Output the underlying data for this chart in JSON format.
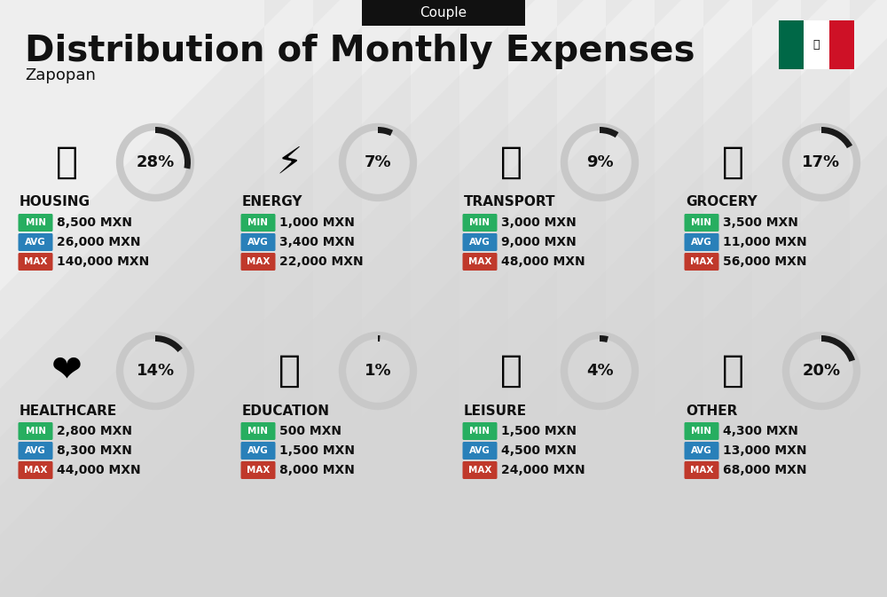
{
  "title": "Distribution of Monthly Expenses",
  "subtitle": "Couple",
  "location": "Zapopan",
  "bg_color": "#eeeeee",
  "categories": [
    {
      "name": "HOUSING",
      "pct": 28,
      "min": "8,500 MXN",
      "avg": "26,000 MXN",
      "max": "140,000 MXN",
      "row": 0,
      "col": 0
    },
    {
      "name": "ENERGY",
      "pct": 7,
      "min": "1,000 MXN",
      "avg": "3,400 MXN",
      "max": "22,000 MXN",
      "row": 0,
      "col": 1
    },
    {
      "name": "TRANSPORT",
      "pct": 9,
      "min": "3,000 MXN",
      "avg": "9,000 MXN",
      "max": "48,000 MXN",
      "row": 0,
      "col": 2
    },
    {
      "name": "GROCERY",
      "pct": 17,
      "min": "3,500 MXN",
      "avg": "11,000 MXN",
      "max": "56,000 MXN",
      "row": 0,
      "col": 3
    },
    {
      "name": "HEALTHCARE",
      "pct": 14,
      "min": "2,800 MXN",
      "avg": "8,300 MXN",
      "max": "44,000 MXN",
      "row": 1,
      "col": 0
    },
    {
      "name": "EDUCATION",
      "pct": 1,
      "min": "500 MXN",
      "avg": "1,500 MXN",
      "max": "8,000 MXN",
      "row": 1,
      "col": 1
    },
    {
      "name": "LEISURE",
      "pct": 4,
      "min": "1,500 MXN",
      "avg": "4,500 MXN",
      "max": "24,000 MXN",
      "row": 1,
      "col": 2
    },
    {
      "name": "OTHER",
      "pct": 20,
      "min": "4,300 MXN",
      "avg": "13,000 MXN",
      "max": "68,000 MXN",
      "row": 1,
      "col": 3
    }
  ],
  "min_color": "#27ae60",
  "avg_color": "#2980b9",
  "max_color": "#c0392b",
  "text_color": "#111111",
  "donut_color": "#1a1a1a",
  "donut_bg": "#c8c8c8",
  "stripe_color": "#d5d5d5",
  "flag_green": "#006847",
  "flag_white": "#ffffff",
  "flag_red": "#ce1126"
}
